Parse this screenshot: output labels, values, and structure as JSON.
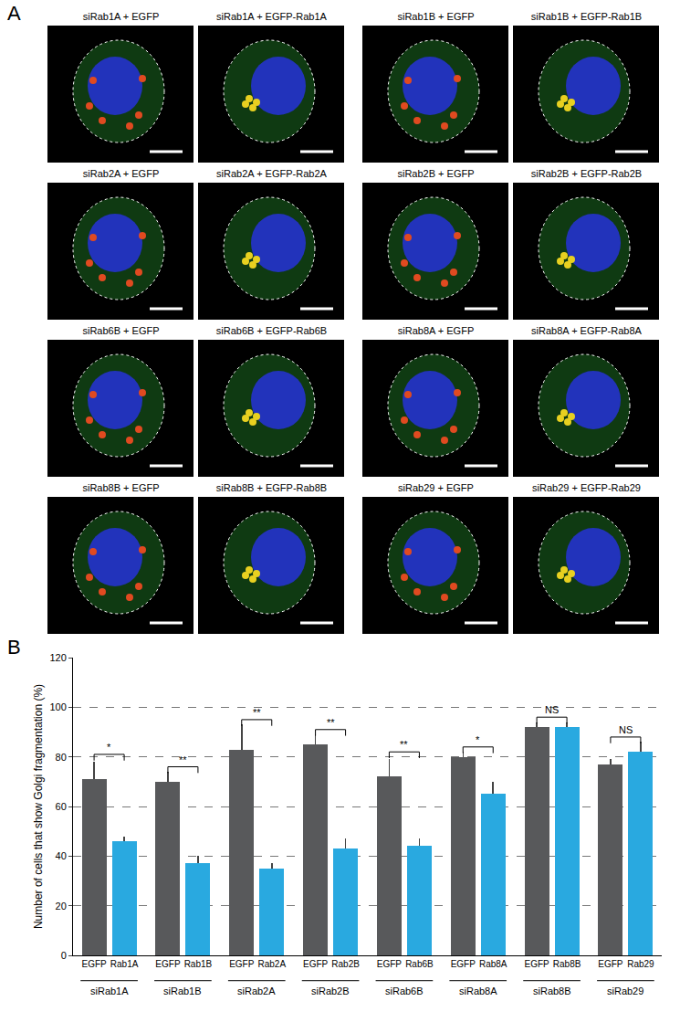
{
  "figure": {
    "panel_a": {
      "label": "A",
      "images": [
        {
          "title": "siRab1A + EGFP"
        },
        {
          "title": "siRab1A + EGFP-Rab1A"
        },
        {
          "title": "siRab1B + EGFP"
        },
        {
          "title": "siRab1B + EGFP-Rab1B"
        },
        {
          "title": "siRab2A + EGFP"
        },
        {
          "title": "siRab2A + EGFP-Rab2A"
        },
        {
          "title": "siRab2B + EGFP"
        },
        {
          "title": "siRab2B + EGFP-Rab2B"
        },
        {
          "title": "siRab6B + EGFP"
        },
        {
          "title": "siRab6B + EGFP-Rab6B"
        },
        {
          "title": "siRab8A + EGFP"
        },
        {
          "title": "siRab8A + EGFP-Rab8A"
        },
        {
          "title": "siRab8B + EGFP"
        },
        {
          "title": "siRab8B + EGFP-Rab8B"
        },
        {
          "title": "siRab29 + EGFP"
        },
        {
          "title": "siRab29 + EGFP-Rab29"
        }
      ]
    },
    "panel_b": {
      "label": "B"
    }
  },
  "chart_data": {
    "type": "bar",
    "ylabel": "Number of cells that show Golgi fragmentation (%)",
    "categories": [
      "EGFP",
      "Rab1A",
      "EGFP",
      "Rab1B",
      "EGFP",
      "Rab2A",
      "EGFP",
      "Rab2B",
      "EGFP",
      "Rab6B",
      "EGFP",
      "Rab8A",
      "EGFP",
      "Rab8B",
      "EGFP",
      "Rab29"
    ],
    "group_labels": [
      "siRab1A",
      "siRab1B",
      "siRab2A",
      "siRab2B",
      "siRab6B",
      "siRab8A",
      "siRab8B",
      "siRab29"
    ],
    "values": [
      71,
      46,
      70,
      37,
      83,
      35,
      85,
      43,
      72,
      44,
      80,
      65,
      92,
      92,
      77,
      82
    ],
    "errors": [
      7,
      2,
      4,
      3,
      10,
      2,
      4,
      4,
      7,
      3,
      2,
      5,
      2,
      2,
      2,
      4
    ],
    "colors": [
      "#58595b",
      "#29a9e0",
      "#58595b",
      "#29a9e0",
      "#58595b",
      "#29a9e0",
      "#58595b",
      "#29a9e0",
      "#58595b",
      "#29a9e0",
      "#58595b",
      "#29a9e0",
      "#58595b",
      "#29a9e0",
      "#58595b",
      "#29a9e0"
    ],
    "significance": [
      {
        "label": "*",
        "y": 81
      },
      {
        "label": "**",
        "y": 76
      },
      {
        "label": "**",
        "y": 95
      },
      {
        "label": "**",
        "y": 91
      },
      {
        "label": "**",
        "y": 82
      },
      {
        "label": "*",
        "y": 84
      },
      {
        "label": "NS",
        "y": 96
      },
      {
        "label": "NS",
        "y": 88
      }
    ],
    "ylim": [
      0,
      120
    ],
    "yticks": [
      0,
      20,
      40,
      60,
      80,
      100,
      120
    ],
    "grid": true
  }
}
